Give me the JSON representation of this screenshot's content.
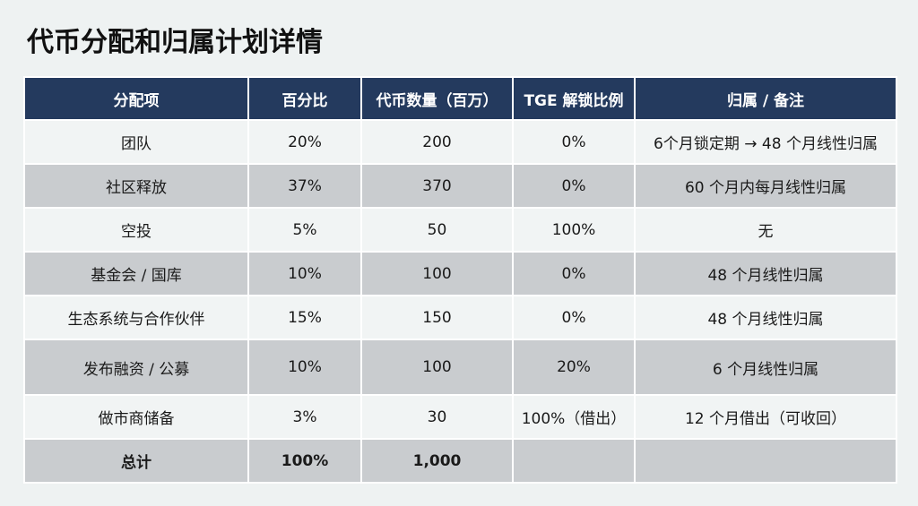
{
  "title": "代币分配和归属计划详情",
  "table": {
    "headers": [
      "分配项",
      "百分比",
      "代币数量（百万）",
      "TGE 解锁比例",
      "归属 / 备注"
    ],
    "rows": [
      [
        "团队",
        "20%",
        "200",
        "0%",
        "6个月锁定期 → 48 个月线性归属"
      ],
      [
        "社区释放",
        "37%",
        "370",
        "0%",
        "60 个月内每月线性归属"
      ],
      [
        "空投",
        "5%",
        "50",
        "100%",
        "无"
      ],
      [
        "基金会 / 国库",
        "10%",
        "100",
        "0%",
        "48 个月线性归属"
      ],
      [
        "生态系统与合作伙伴",
        "15%",
        "150",
        "0%",
        "48 个月线性归属"
      ],
      [
        "发布融资 / 公募",
        "10%",
        "100",
        "20%",
        "6 个月线性归属"
      ],
      [
        "做市商储备",
        "3%",
        "30",
        "100%（借出）",
        "12 个月借出（可收回）"
      ]
    ],
    "total": [
      "总计",
      "100%",
      "1,000"
    ]
  }
}
